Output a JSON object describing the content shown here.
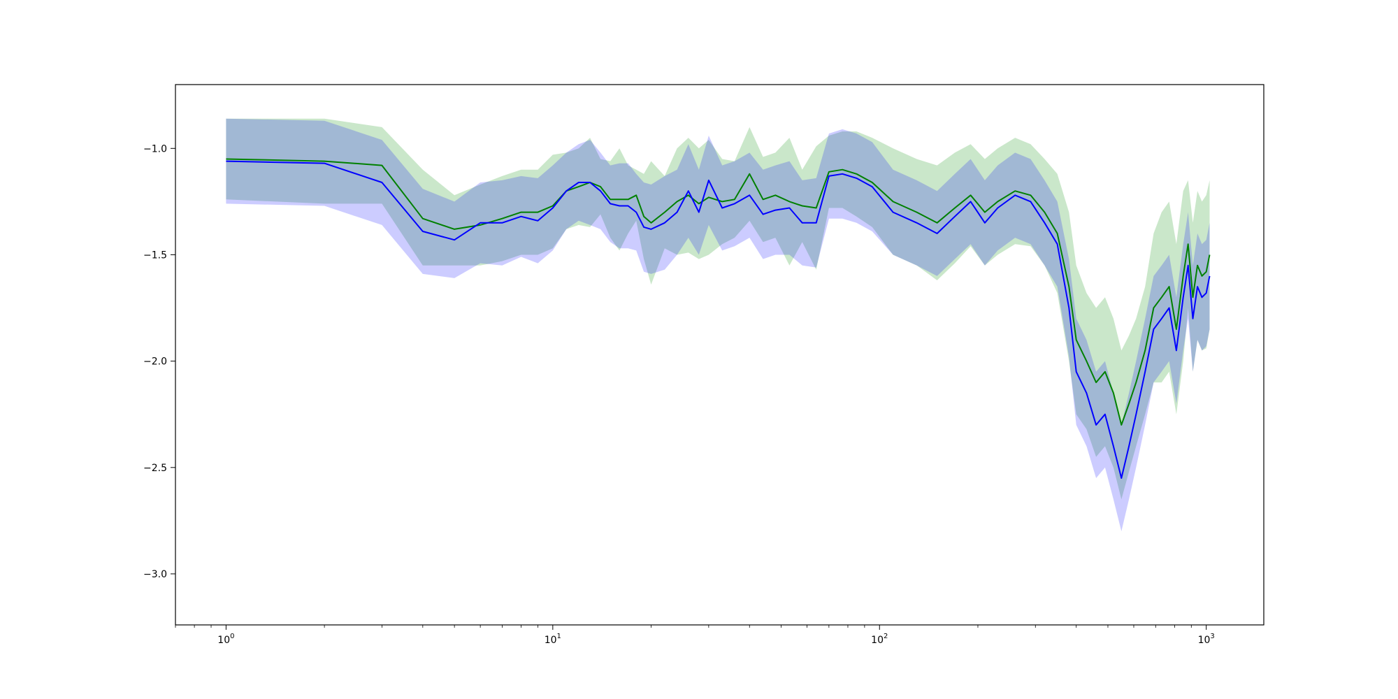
{
  "chart_data": {
    "type": "line",
    "title": "",
    "xlabel": "",
    "ylabel": "",
    "x_scale": "log",
    "xlim": [
      0.7,
      1500
    ],
    "ylim": [
      -3.24,
      -0.7
    ],
    "grid": false,
    "legend": "none",
    "x_ticks": [
      {
        "value": 1,
        "base": "10",
        "exp": "0"
      },
      {
        "value": 10,
        "base": "10",
        "exp": "1"
      },
      {
        "value": 100,
        "base": "10",
        "exp": "2"
      },
      {
        "value": 1000,
        "base": "10",
        "exp": "3"
      }
    ],
    "y_ticks": [
      {
        "value": -1.0,
        "label": "−1.0"
      },
      {
        "value": -1.5,
        "label": "−1.5"
      },
      {
        "value": -2.0,
        "label": "−2.0"
      },
      {
        "value": -2.5,
        "label": "−2.5"
      },
      {
        "value": -3.0,
        "label": "−3.0"
      }
    ],
    "x": [
      1,
      2,
      3,
      4,
      5,
      6,
      7,
      8,
      9,
      10,
      11,
      12,
      13,
      14,
      15,
      16,
      17,
      18,
      19,
      20,
      22,
      24,
      26,
      28,
      30,
      33,
      36,
      40,
      44,
      48,
      53,
      58,
      64,
      70,
      77,
      85,
      95,
      110,
      130,
      150,
      170,
      190,
      210,
      230,
      260,
      290,
      320,
      350,
      380,
      400,
      430,
      460,
      490,
      520,
      550,
      580,
      610,
      650,
      690,
      730,
      770,
      810,
      850,
      880,
      910,
      940,
      970,
      1000,
      1024
    ],
    "series": [
      {
        "color": "#008000",
        "fill": "#2ca02c",
        "fill_opacity": 0.25,
        "values": [
          -1.05,
          -1.06,
          -1.08,
          -1.33,
          -1.38,
          -1.36,
          -1.33,
          -1.3,
          -1.3,
          -1.27,
          -1.2,
          -1.18,
          -1.16,
          -1.18,
          -1.24,
          -1.24,
          -1.24,
          -1.22,
          -1.32,
          -1.35,
          -1.3,
          -1.25,
          -1.22,
          -1.26,
          -1.23,
          -1.25,
          -1.24,
          -1.12,
          -1.24,
          -1.22,
          -1.25,
          -1.27,
          -1.28,
          -1.11,
          -1.1,
          -1.12,
          -1.16,
          -1.25,
          -1.3,
          -1.35,
          -1.28,
          -1.22,
          -1.3,
          -1.25,
          -1.2,
          -1.22,
          -1.3,
          -1.4,
          -1.65,
          -1.9,
          -2.0,
          -2.1,
          -2.05,
          -2.15,
          -2.3,
          -2.2,
          -2.1,
          -1.95,
          -1.75,
          -1.7,
          -1.65,
          -1.85,
          -1.6,
          -1.45,
          -1.7,
          -1.55,
          -1.6,
          -1.58,
          -1.5
        ],
        "upper": [
          -0.86,
          -0.86,
          -0.9,
          -1.1,
          -1.22,
          -1.17,
          -1.13,
          -1.1,
          -1.1,
          -1.03,
          -1.02,
          -1.0,
          -0.95,
          -1.05,
          -1.06,
          -1.0,
          -1.08,
          -1.1,
          -1.12,
          -1.06,
          -1.13,
          -1.0,
          -0.95,
          -1.0,
          -0.96,
          -1.05,
          -1.06,
          -0.9,
          -1.04,
          -1.02,
          -0.95,
          -1.1,
          -0.99,
          -0.94,
          -0.92,
          -0.92,
          -0.95,
          -1.0,
          -1.05,
          -1.08,
          -1.02,
          -0.98,
          -1.05,
          -1.0,
          -0.95,
          -0.98,
          -1.05,
          -1.12,
          -1.3,
          -1.55,
          -1.68,
          -1.75,
          -1.7,
          -1.8,
          -1.95,
          -1.88,
          -1.8,
          -1.65,
          -1.4,
          -1.3,
          -1.25,
          -1.45,
          -1.2,
          -1.15,
          -1.35,
          -1.2,
          -1.25,
          -1.22,
          -1.15
        ],
        "lower": [
          -1.24,
          -1.26,
          -1.26,
          -1.55,
          -1.55,
          -1.55,
          -1.53,
          -1.5,
          -1.5,
          -1.47,
          -1.38,
          -1.36,
          -1.37,
          -1.31,
          -1.42,
          -1.48,
          -1.4,
          -1.34,
          -1.52,
          -1.64,
          -1.47,
          -1.5,
          -1.49,
          -1.52,
          -1.5,
          -1.45,
          -1.42,
          -1.34,
          -1.44,
          -1.42,
          -1.55,
          -1.44,
          -1.57,
          -1.28,
          -1.28,
          -1.32,
          -1.37,
          -1.5,
          -1.55,
          -1.62,
          -1.54,
          -1.46,
          -1.55,
          -1.5,
          -1.45,
          -1.46,
          -1.55,
          -1.68,
          -2.0,
          -2.25,
          -2.32,
          -2.45,
          -2.4,
          -2.5,
          -2.65,
          -2.52,
          -2.4,
          -2.25,
          -2.1,
          -2.1,
          -2.05,
          -2.25,
          -2.0,
          -1.75,
          -2.05,
          -1.9,
          -1.95,
          -1.94,
          -1.85
        ]
      },
      {
        "color": "#0000ff",
        "fill": "#0000ff",
        "fill_opacity": 0.2,
        "values": [
          -1.06,
          -1.07,
          -1.16,
          -1.39,
          -1.43,
          -1.35,
          -1.35,
          -1.32,
          -1.34,
          -1.28,
          -1.2,
          -1.16,
          -1.16,
          -1.2,
          -1.26,
          -1.27,
          -1.27,
          -1.3,
          -1.37,
          -1.38,
          -1.35,
          -1.3,
          -1.2,
          -1.3,
          -1.15,
          -1.28,
          -1.26,
          -1.22,
          -1.31,
          -1.29,
          -1.28,
          -1.35,
          -1.35,
          -1.13,
          -1.12,
          -1.14,
          -1.18,
          -1.3,
          -1.35,
          -1.4,
          -1.32,
          -1.25,
          -1.35,
          -1.28,
          -1.22,
          -1.25,
          -1.35,
          -1.45,
          -1.75,
          -2.05,
          -2.15,
          -2.3,
          -2.25,
          -2.4,
          -2.55,
          -2.4,
          -2.25,
          -2.05,
          -1.85,
          -1.8,
          -1.75,
          -1.95,
          -1.7,
          -1.55,
          -1.8,
          -1.65,
          -1.7,
          -1.68,
          -1.6
        ],
        "upper": [
          -0.86,
          -0.87,
          -0.96,
          -1.19,
          -1.25,
          -1.16,
          -1.15,
          -1.13,
          -1.14,
          -1.08,
          -1.02,
          -0.98,
          -0.96,
          -1.02,
          -1.08,
          -1.07,
          -1.07,
          -1.12,
          -1.16,
          -1.17,
          -1.13,
          -1.1,
          -0.98,
          -1.1,
          -0.94,
          -1.08,
          -1.06,
          -1.02,
          -1.1,
          -1.08,
          -1.06,
          -1.15,
          -1.14,
          -0.93,
          -0.91,
          -0.93,
          -0.97,
          -1.1,
          -1.15,
          -1.2,
          -1.12,
          -1.05,
          -1.15,
          -1.08,
          -1.02,
          -1.05,
          -1.15,
          -1.25,
          -1.52,
          -1.8,
          -1.9,
          -2.05,
          -2.0,
          -2.15,
          -2.3,
          -2.15,
          -2.0,
          -1.8,
          -1.6,
          -1.55,
          -1.5,
          -1.7,
          -1.45,
          -1.3,
          -1.55,
          -1.4,
          -1.45,
          -1.43,
          -1.35
        ],
        "lower": [
          -1.26,
          -1.27,
          -1.36,
          -1.59,
          -1.61,
          -1.54,
          -1.55,
          -1.51,
          -1.54,
          -1.48,
          -1.38,
          -1.34,
          -1.36,
          -1.38,
          -1.44,
          -1.47,
          -1.47,
          -1.48,
          -1.58,
          -1.59,
          -1.57,
          -1.5,
          -1.42,
          -1.5,
          -1.36,
          -1.48,
          -1.46,
          -1.42,
          -1.52,
          -1.5,
          -1.5,
          -1.55,
          -1.56,
          -1.33,
          -1.33,
          -1.35,
          -1.39,
          -1.5,
          -1.55,
          -1.6,
          -1.52,
          -1.45,
          -1.55,
          -1.48,
          -1.42,
          -1.45,
          -1.55,
          -1.65,
          -1.98,
          -2.3,
          -2.4,
          -2.55,
          -2.5,
          -2.65,
          -2.8,
          -2.65,
          -2.5,
          -2.3,
          -2.1,
          -2.05,
          -2.0,
          -2.2,
          -1.95,
          -1.8,
          -2.05,
          -1.9,
          -1.95,
          -1.93,
          -1.85
        ]
      }
    ]
  }
}
